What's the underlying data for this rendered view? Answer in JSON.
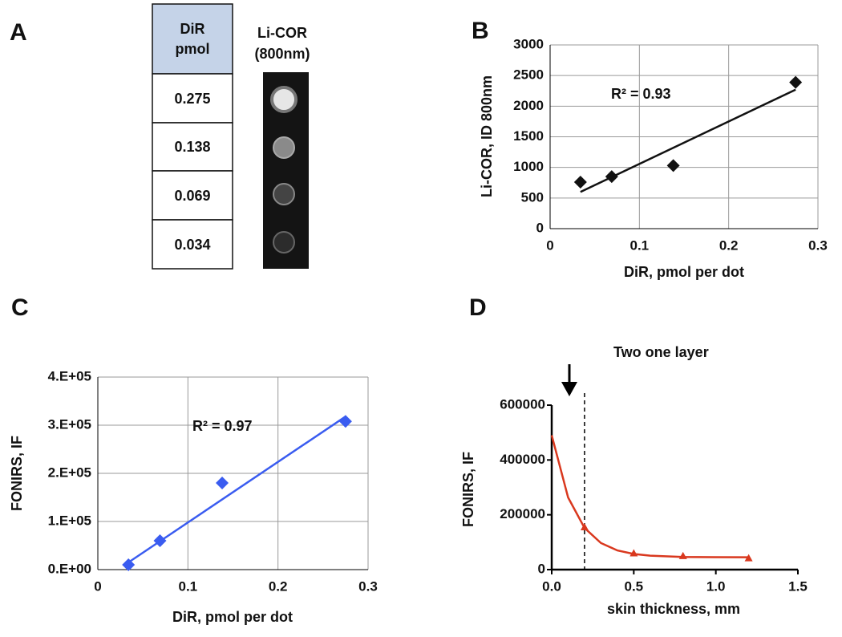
{
  "panel_a": {
    "label": "A",
    "table": {
      "header": [
        "DiR",
        "pmol"
      ],
      "rows": [
        "0.275",
        "0.138",
        "0.069",
        "0.034"
      ]
    },
    "image_title": [
      "Li-COR",
      "(800nm)"
    ]
  },
  "chart_data": [
    {
      "type": "scatter",
      "panel_label": "B",
      "ylabel": "Li-COR, ID 800nm",
      "xlabel": "DiR, pmol per dot",
      "annotation": "R² = 0.93",
      "grid": true,
      "xlim": [
        0,
        0.3
      ],
      "xticks": [
        0,
        0.1,
        0.2,
        0.3
      ],
      "ylim": [
        0,
        3000
      ],
      "yticks": [
        0,
        500,
        1000,
        1500,
        2000,
        2500,
        3000
      ],
      "series": [
        {
          "style": "marker",
          "marker": "diamond",
          "color": "#111111",
          "x": [
            0.034,
            0.069,
            0.138,
            0.275
          ],
          "values": [
            760,
            850,
            1030,
            2390
          ]
        },
        {
          "style": "line",
          "color": "#111111",
          "x": [
            0.034,
            0.275
          ],
          "values": [
            600,
            2270
          ]
        }
      ]
    },
    {
      "type": "scatter",
      "panel_label": "C",
      "ylabel": "FONIRS, IF",
      "xlabel": "DiR, pmol per dot",
      "annotation": "R² = 0.97",
      "grid": true,
      "xlim": [
        0,
        0.3
      ],
      "xticks": [
        0,
        0.1,
        0.2,
        0.3
      ],
      "ylim": [
        0,
        400000
      ],
      "yticks": [
        {
          "value": 0,
          "label": "0.E+00"
        },
        {
          "value": 100000,
          "label": "1.E+05"
        },
        {
          "value": 200000,
          "label": "2.E+05"
        },
        {
          "value": 300000,
          "label": "3.E+05"
        },
        {
          "value": 400000,
          "label": "4.E+05"
        }
      ],
      "series": [
        {
          "style": "marker",
          "marker": "diamond",
          "color": "#3a5cf0",
          "x": [
            0.034,
            0.069,
            0.138,
            0.275
          ],
          "values": [
            10000,
            60000,
            180000,
            308000
          ]
        },
        {
          "style": "line",
          "color": "#3a5cf0",
          "x": [
            0.034,
            0.275
          ],
          "values": [
            15000,
            318000
          ]
        }
      ]
    },
    {
      "type": "scatter",
      "panel_label": "D",
      "ylabel": "FONIRS, IF",
      "xlabel": "skin thickness, mm",
      "annotation": "Two one layer",
      "grid": false,
      "vline": 0.2,
      "xlim": [
        0,
        1.5
      ],
      "xticks": [
        {
          "value": 0,
          "label": "0.0"
        },
        0.5,
        {
          "value": 1,
          "label": "1.0"
        },
        1.5
      ],
      "ylim": [
        0,
        600000
      ],
      "yticks": [
        0,
        200000,
        400000,
        600000
      ],
      "series": [
        {
          "style": "line",
          "color": "#d9381e",
          "x": [
            0,
            0.1,
            0.2,
            0.3,
            0.4,
            0.5,
            0.6,
            0.8,
            1.2
          ],
          "values": [
            490000,
            263000,
            152000,
            97000,
            70000,
            57000,
            51000,
            46000,
            45000
          ]
        },
        {
          "style": "marker",
          "marker": "triangle",
          "color": "#d9381e",
          "x": [
            0.2,
            0.5,
            0.8,
            1.2
          ],
          "values": [
            155000,
            60000,
            50000,
            42000
          ]
        }
      ]
    }
  ]
}
